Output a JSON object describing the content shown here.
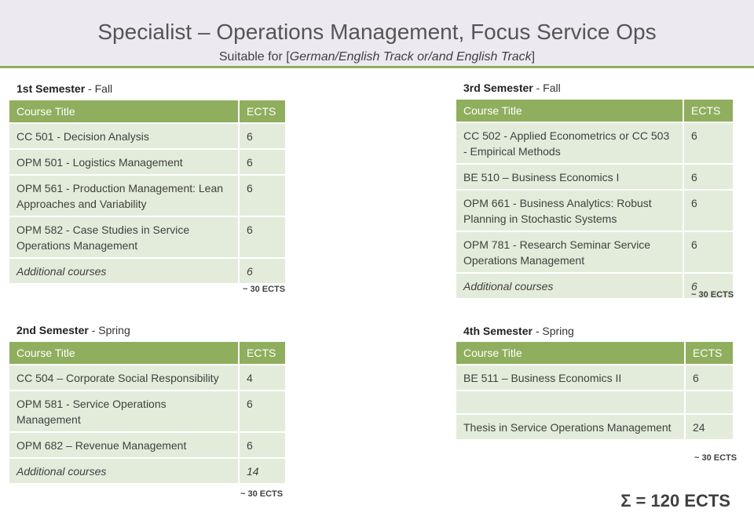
{
  "header": {
    "title": "Specialist – Operations Management, Focus Service Ops",
    "subtitle_prefix": "Suitable for [",
    "subtitle_track": "German/English Track or/and English Track",
    "subtitle_suffix": "]"
  },
  "columns": {
    "course": "Course Title",
    "ects": "ECTS"
  },
  "semesters": [
    {
      "label": "1st Semester",
      "season": " - Fall",
      "courses": [
        {
          "title": "CC 501 - Decision Analysis",
          "ects": "6"
        },
        {
          "title": "OPM 501 - Logistics Management",
          "ects": "6"
        },
        {
          "title": "OPM 561 - Production Management: Lean Approaches and Variability",
          "ects": "6"
        },
        {
          "title": "OPM 582 - Case Studies in Service Operations Management",
          "ects": "6"
        },
        {
          "title": "Additional courses",
          "ects": "6",
          "italic": true
        }
      ],
      "total": "~ 30 ECTS"
    },
    {
      "label": "2nd Semester",
      "season": " - Spring",
      "courses": [
        {
          "title": "CC 504 – Corporate Social Responsibility",
          "ects": "4"
        },
        {
          "title": "OPM 581 - Service Operations Management",
          "ects": "6"
        },
        {
          "title": "OPM 682 – Revenue Management",
          "ects": "6"
        },
        {
          "title": "Additional courses",
          "ects": "14",
          "italic": true
        }
      ],
      "total": "~ 30 ECTS"
    },
    {
      "label": "3rd Semester",
      "season": " - Fall",
      "courses": [
        {
          "title": "CC 502 - Applied Econometrics  or CC 503 - Empirical Methods",
          "ects": "6"
        },
        {
          "title": "BE 510 – Business Economics I",
          "ects": "6"
        },
        {
          "title": "OPM 661 - Business Analytics: Robust Planning in Stochastic Systems",
          "ects": "6"
        },
        {
          "title": "OPM 781 - Research Seminar Service Operations Management",
          "ects": "6"
        },
        {
          "title": "Additional courses",
          "ects": "6",
          "italic": true
        }
      ],
      "total": "~ 30 ECTS"
    },
    {
      "label": "4th Semester",
      "season": " - Spring",
      "courses": [
        {
          "title": "BE 511 – Business Economics II",
          "ects": "6"
        },
        {
          "title": "",
          "ects": ""
        },
        {
          "title": "Thesis in Service Operations Management",
          "ects": "24"
        }
      ],
      "total": "~ 30 ECTS"
    }
  ],
  "grand_total": "Σ = 120 ECTS"
}
